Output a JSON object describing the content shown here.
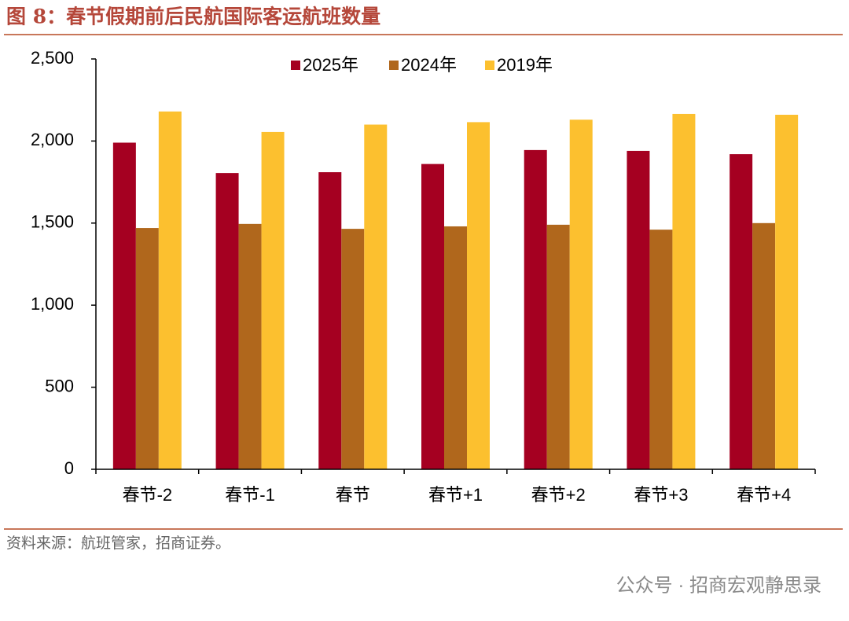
{
  "chart_data": {
    "type": "bar",
    "title": "图 8：春节假期前后民航国际客运航班数量",
    "categories": [
      "春节-2",
      "春节-1",
      "春节",
      "春节+1",
      "春节+2",
      "春节+3",
      "春节+4"
    ],
    "series": [
      {
        "name": "2025年",
        "color": "#a50021",
        "values": [
          1990,
          1805,
          1810,
          1860,
          1945,
          1940,
          1920
        ]
      },
      {
        "name": "2024年",
        "color": "#b0671c",
        "values": [
          1470,
          1495,
          1465,
          1480,
          1490,
          1460,
          1500
        ]
      },
      {
        "name": "2019年",
        "color": "#fcc02f",
        "values": [
          2180,
          2055,
          2100,
          2115,
          2130,
          2165,
          2160
        ]
      }
    ],
    "ylim": [
      0,
      2500
    ],
    "yticks": [
      0,
      500,
      {
        "value": 1000,
        "label": "1,000"
      },
      {
        "value": 1500,
        "label": "1,500"
      },
      {
        "value": 2000,
        "label": "2,000"
      },
      {
        "value": 2500,
        "label": "2,500"
      }
    ],
    "grid": false,
    "legend": "top",
    "source": "资料来源：航班管家，招商证券。"
  },
  "watermark": "公众号 · 招商宏观静思录"
}
